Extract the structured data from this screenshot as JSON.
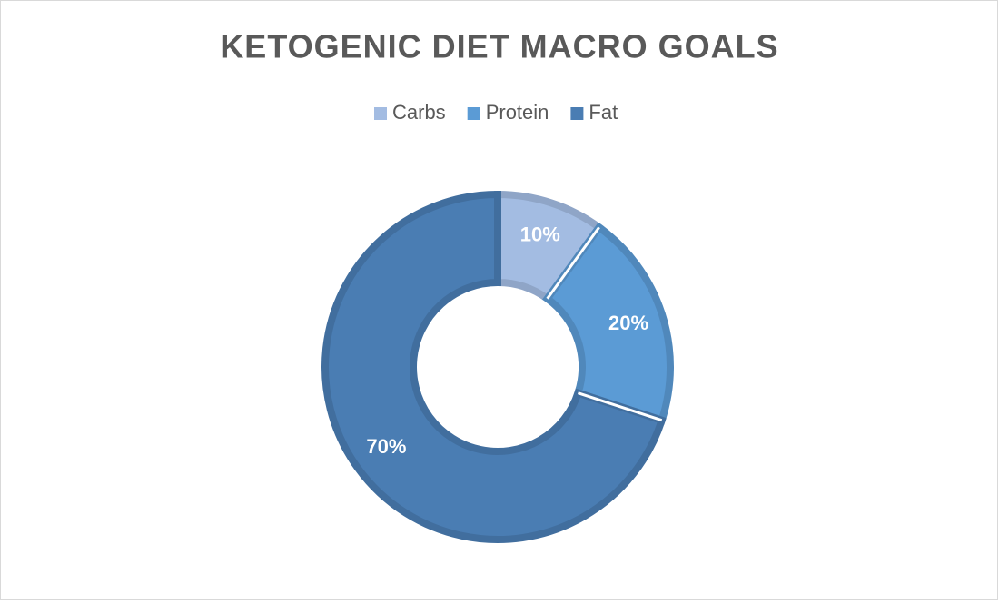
{
  "chart_data": {
    "type": "donut",
    "title": "KETOGENIC DIET MACRO GOALS",
    "categories": [
      "Carbs",
      "Protein",
      "Fat"
    ],
    "values": [
      10,
      20,
      70
    ],
    "value_labels": [
      "10%",
      "20%",
      "70%"
    ],
    "colors": [
      "#a3bce2",
      "#5b9bd5",
      "#4a7db3"
    ],
    "legend": "top"
  }
}
